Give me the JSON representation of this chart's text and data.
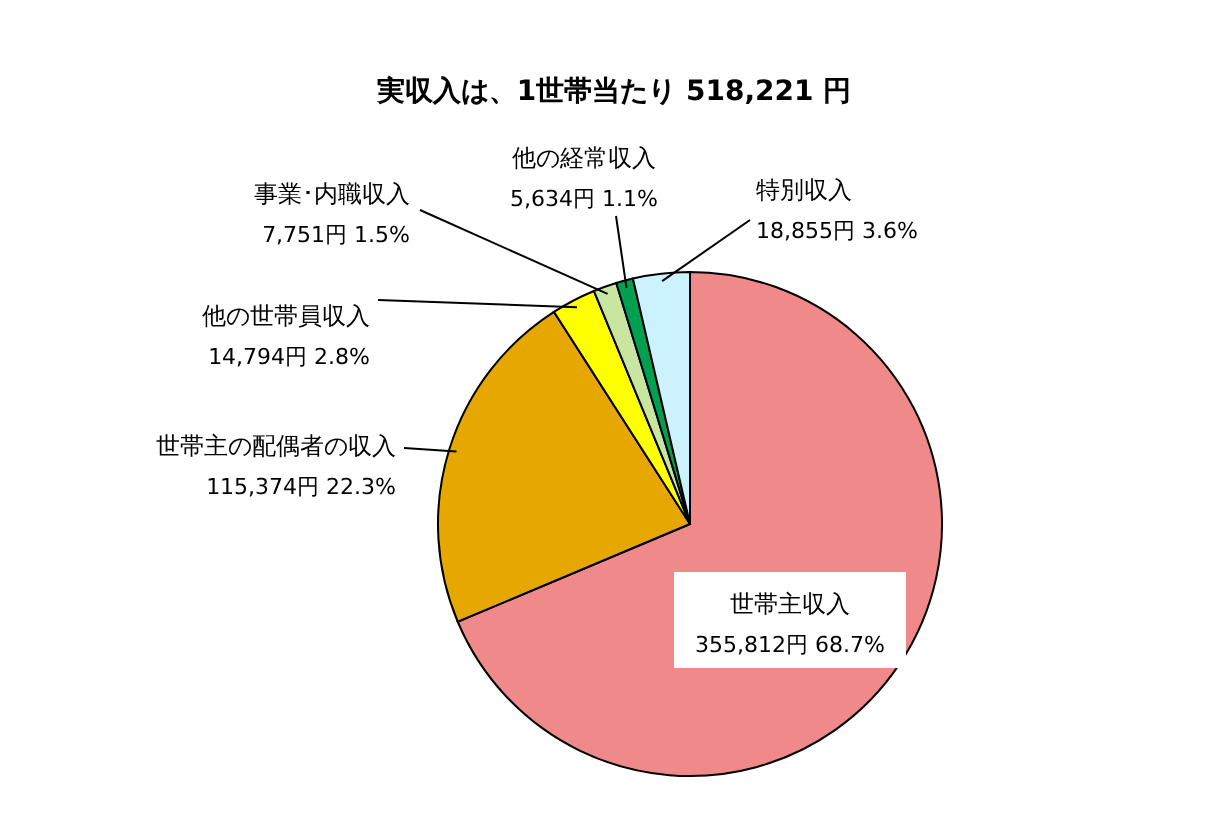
{
  "chart_data": {
    "type": "pie",
    "title": "実収入は、1世帯当たり 518,221 円",
    "categories": [
      "世帯主収入",
      "世帯主の配偶者の収入",
      "他の世帯員収入",
      "事業･内職収入",
      "他の経常収入",
      "特別収入"
    ],
    "values": [
      355812,
      115374,
      14794,
      7751,
      5634,
      18855
    ],
    "value_labels": [
      "355,812円 68.7%",
      "115,374円 22.3%",
      "14,794円 2.8%",
      "7,751円 1.5%",
      "5,634円 1.1%",
      "18,855円 3.6%"
    ],
    "colors": [
      "#f08a8a",
      "#e6a800",
      "#ffff00",
      "#c8e6a0",
      "#00a050",
      "#ccf2ff"
    ]
  }
}
